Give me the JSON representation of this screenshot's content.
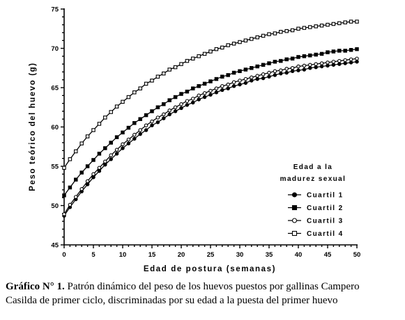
{
  "chart_data": {
    "type": "line",
    "xlabel": "Edad de postura (semanas)",
    "ylabel": "Peso teórico del huevo (g)",
    "xlim": [
      0,
      50
    ],
    "ylim": [
      45,
      75
    ],
    "x_ticks": [
      "0",
      "5",
      "10",
      "15",
      "20",
      "25",
      "30",
      "35",
      "40",
      "45",
      "50"
    ],
    "y_ticks": [
      "45",
      "50",
      "55",
      "60",
      "65",
      "70",
      "75"
    ],
    "grid": false,
    "legend": {
      "title_line1": "Edad a la",
      "title_line2": "madurez sexual",
      "placement": "right"
    },
    "x": [
      0,
      1,
      2,
      3,
      4,
      5,
      6,
      7,
      8,
      9,
      10,
      11,
      12,
      13,
      14,
      15,
      16,
      17,
      18,
      19,
      20,
      21,
      22,
      23,
      24,
      25,
      26,
      27,
      28,
      29,
      30,
      31,
      32,
      33,
      34,
      35,
      36,
      37,
      38,
      39,
      40,
      41,
      42,
      43,
      44,
      45,
      46,
      47,
      48,
      49,
      50
    ],
    "series": [
      {
        "name": "Cuartil 1",
        "marker": "filled-circle",
        "values": [
          48.7,
          49.8,
          50.8,
          51.8,
          52.7,
          53.6,
          54.4,
          55.2,
          55.9,
          56.6,
          57.3,
          57.9,
          58.5,
          59.1,
          59.6,
          60.2,
          60.6,
          61.1,
          61.6,
          62.0,
          62.4,
          62.8,
          63.1,
          63.5,
          63.8,
          64.1,
          64.4,
          64.7,
          64.9,
          65.2,
          65.4,
          65.6,
          65.9,
          66.1,
          66.2,
          66.4,
          66.6,
          66.8,
          66.9,
          67.1,
          67.2,
          67.3,
          67.5,
          67.6,
          67.7,
          67.8,
          67.9,
          68.0,
          68.1,
          68.2,
          68.3
        ]
      },
      {
        "name": "Cuartil 2",
        "marker": "filled-square",
        "values": [
          51.3,
          52.3,
          53.3,
          54.2,
          55.0,
          55.8,
          56.6,
          57.3,
          58.0,
          58.7,
          59.3,
          59.9,
          60.5,
          61.0,
          61.5,
          62.0,
          62.5,
          62.9,
          63.4,
          63.8,
          64.2,
          64.5,
          64.9,
          65.2,
          65.5,
          65.8,
          66.1,
          66.4,
          66.6,
          66.9,
          67.1,
          67.3,
          67.5,
          67.7,
          67.9,
          68.1,
          68.3,
          68.4,
          68.6,
          68.7,
          68.9,
          69.0,
          69.1,
          69.2,
          69.3,
          69.5,
          69.6,
          69.7,
          69.7,
          69.8,
          69.9
        ]
      },
      {
        "name": "Cuartil 3",
        "marker": "open-circle",
        "values": [
          48.9,
          50.1,
          51.1,
          52.1,
          53.1,
          54.0,
          54.8,
          55.6,
          56.4,
          57.1,
          57.8,
          58.4,
          59.0,
          59.6,
          60.2,
          60.7,
          61.2,
          61.6,
          62.1,
          62.5,
          62.9,
          63.3,
          63.6,
          64.0,
          64.3,
          64.6,
          64.9,
          65.2,
          65.4,
          65.7,
          65.9,
          66.1,
          66.3,
          66.5,
          66.7,
          66.9,
          67.1,
          67.2,
          67.4,
          67.5,
          67.7,
          67.8,
          67.9,
          68.0,
          68.1,
          68.2,
          68.3,
          68.4,
          68.5,
          68.6,
          68.7
        ]
      },
      {
        "name": "Cuartil 4",
        "marker": "open-square",
        "values": [
          54.8,
          55.9,
          56.9,
          57.9,
          58.8,
          59.6,
          60.4,
          61.2,
          61.9,
          62.6,
          63.2,
          63.8,
          64.4,
          64.9,
          65.5,
          65.9,
          66.4,
          66.8,
          67.3,
          67.6,
          68.0,
          68.4,
          68.7,
          69.0,
          69.3,
          69.6,
          69.9,
          70.1,
          70.4,
          70.6,
          70.8,
          71.0,
          71.2,
          71.4,
          71.6,
          71.8,
          71.9,
          72.1,
          72.2,
          72.3,
          72.5,
          72.6,
          72.7,
          72.8,
          72.9,
          73.0,
          73.1,
          73.2,
          73.3,
          73.4,
          73.4
        ]
      }
    ]
  },
  "caption": {
    "label": "Gráfico N° 1.",
    "line1": "Patrón dinámico del peso de los huevos puestos por gallinas Campero",
    "line2": "Casilda de primer ciclo, discriminadas por su edad a la puesta del primer huevo"
  }
}
